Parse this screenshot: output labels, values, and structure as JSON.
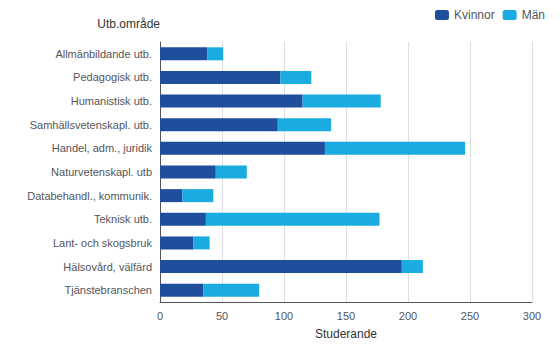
{
  "chart_data": {
    "type": "bar",
    "orientation": "horizontal",
    "stacked": true,
    "xlabel": "Studerande",
    "ylabel": "Utb.område",
    "categories": [
      "Tjänstebranschen",
      "Hälsovård, välfärd",
      "Lant- och skogsbruk",
      "Teknisk utb.",
      "Databehandl., kommunik.",
      "Naturvetenskapl. utb",
      "Handel, adm., juridik",
      "Samhällsvetenskapl. utb.",
      "Humanistisk utb.",
      "Pedagogisk utb.",
      "Allmänbildande utb."
    ],
    "series": [
      {
        "name": "Kvinnor",
        "color": "#1f4e9c",
        "values": [
          35,
          195,
          27,
          37,
          18,
          45,
          133,
          95,
          115,
          97,
          38
        ]
      },
      {
        "name": "Män",
        "color": "#1aace0",
        "values": [
          45,
          17,
          13,
          140,
          25,
          25,
          113,
          43,
          63,
          25,
          13
        ]
      }
    ],
    "xlim": [
      0,
      300
    ],
    "xticks": [
      0,
      50,
      100,
      150,
      200,
      250,
      300
    ],
    "grid": true,
    "legend": "upper right"
  }
}
